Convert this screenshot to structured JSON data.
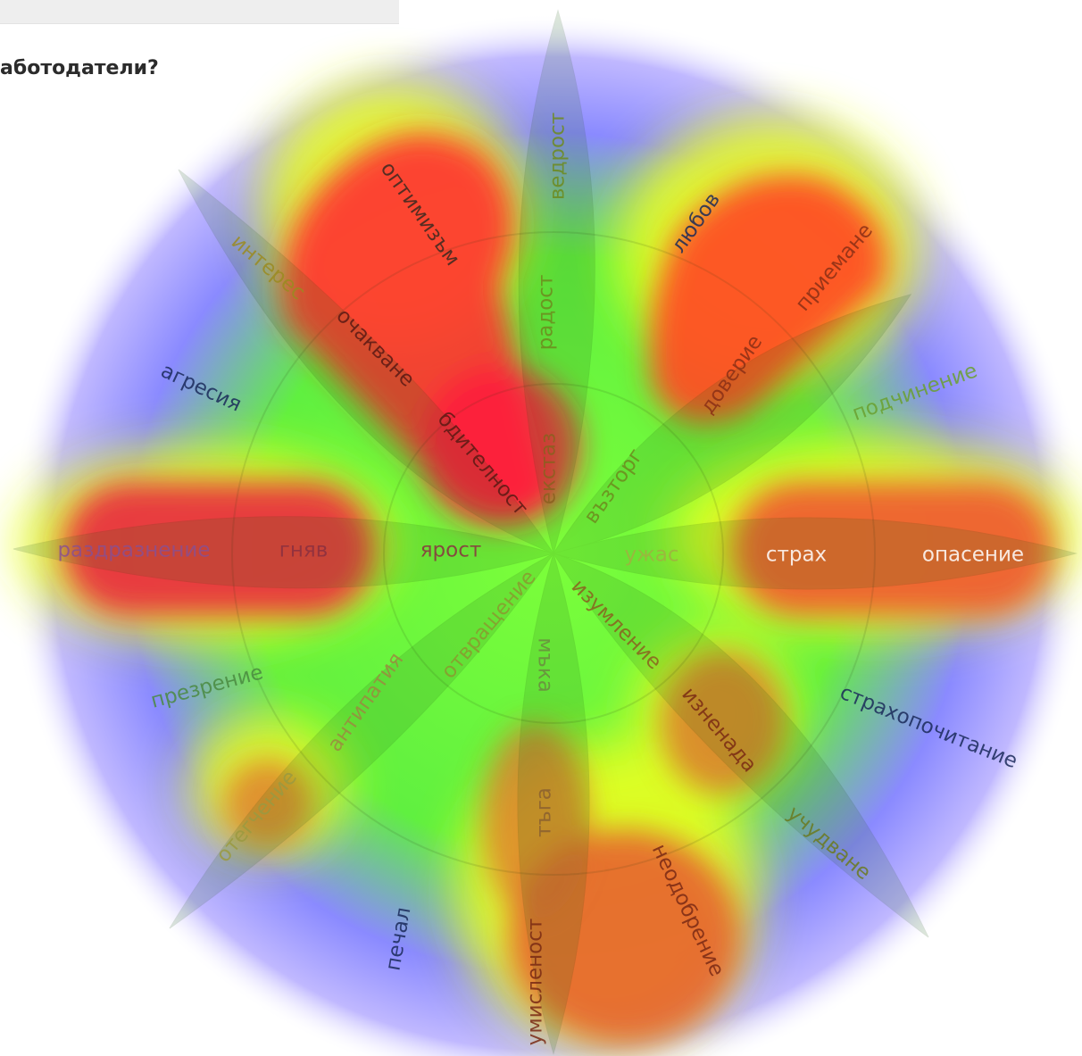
{
  "page": {
    "heading": "аботодатели?"
  },
  "diagram": {
    "inner_labels": [
      {
        "text": "ведрост",
        "color": "#6d8a1e"
      },
      {
        "text": "радост",
        "color": "#6d8a1e"
      },
      {
        "text": "оптимизъм",
        "color": "#3a2a20"
      },
      {
        "text": "интерес",
        "color": "#9a8a20"
      },
      {
        "text": "очакване",
        "color": "#5a1a14"
      },
      {
        "text": "бдителност",
        "color": "#5a1a14"
      },
      {
        "text": "екстаз",
        "color": "#8a6020"
      },
      {
        "text": "възторг",
        "color": "#6d8a1e"
      },
      {
        "text": "доверие",
        "color": "#8a3016"
      },
      {
        "text": "приемане",
        "color": "#8a3016"
      },
      {
        "text": "подчинение",
        "color": "#6aa030"
      },
      {
        "text": "раздразнение",
        "color": "#8a5090"
      },
      {
        "text": "гняв",
        "color": "#8a3040"
      },
      {
        "text": "ярост",
        "color": "#8a3040"
      },
      {
        "text": "ужас",
        "color": "#a0b040"
      },
      {
        "text": "страх",
        "color": "#ffffff"
      },
      {
        "text": "опасение",
        "color": "#ffffff"
      },
      {
        "text": "отвращение",
        "color": "#8a9a30"
      },
      {
        "text": "изумление",
        "color": "#8a6020"
      },
      {
        "text": "антипатия",
        "color": "#9a8a40"
      },
      {
        "text": "мъка",
        "color": "#6a8a40"
      },
      {
        "text": "изненада",
        "color": "#7a2a14"
      },
      {
        "text": "отегчение",
        "color": "#9a9a40"
      },
      {
        "text": "тъга",
        "color": "#8a6030"
      },
      {
        "text": "неодобрение",
        "color": "#7a2a14"
      },
      {
        "text": "учудване",
        "color": "#6a7a20"
      },
      {
        "text": "умисленост",
        "color": "#7a2a14"
      }
    ],
    "outer_labels": [
      {
        "text": "любов",
        "color": "#1a2a5a"
      },
      {
        "text": "агресия",
        "color": "#1a2a5a"
      },
      {
        "text": "презрение",
        "color": "#4a8a40"
      },
      {
        "text": "страхопочитание",
        "color": "#1a2a5a"
      },
      {
        "text": "печал",
        "color": "#1a2a5a"
      }
    ],
    "colors": {
      "heat_red": "#ff2a2a",
      "heat_orange": "#ff8a1a",
      "heat_yellow": "#f0ff20",
      "heat_green": "#40f040",
      "heat_blue": "#7a7aff"
    }
  }
}
